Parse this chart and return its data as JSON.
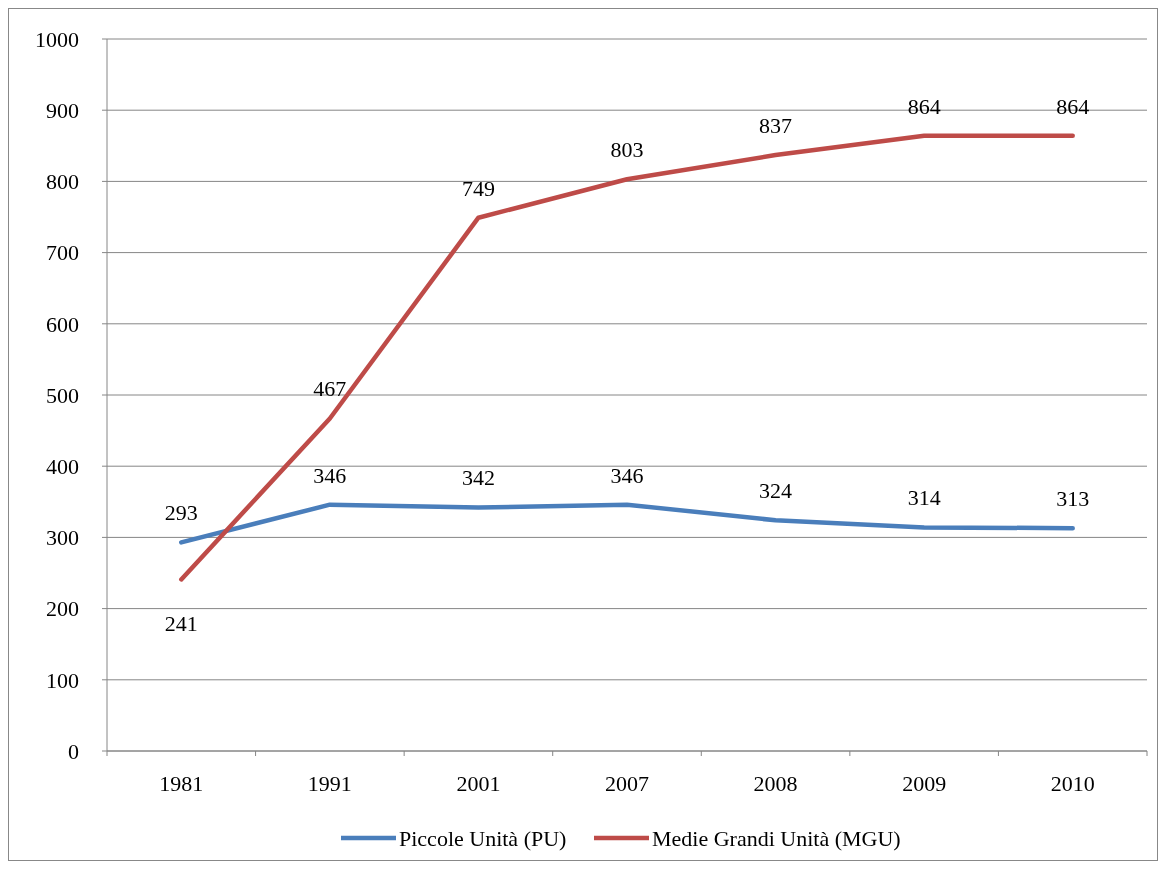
{
  "chart_data": {
    "type": "line",
    "categories": [
      "1981",
      "1991",
      "2001",
      "2007",
      "2008",
      "2009",
      "2010"
    ],
    "series": [
      {
        "name": "Piccole Unità (PU)",
        "color": "#4a7ebb",
        "values": [
          293,
          346,
          342,
          346,
          324,
          314,
          313
        ]
      },
      {
        "name": "Medie Grandi Unità (MGU)",
        "color": "#be4b48",
        "values": [
          241,
          467,
          749,
          803,
          837,
          864,
          864
        ]
      }
    ],
    "ylim": [
      0,
      1000
    ],
    "yticks": [
      0,
      100,
      200,
      300,
      400,
      500,
      600,
      700,
      800,
      900,
      1000
    ],
    "grid": "y",
    "legend": "bottom",
    "data_labels": true,
    "marker": "none",
    "line_style": "solid"
  }
}
